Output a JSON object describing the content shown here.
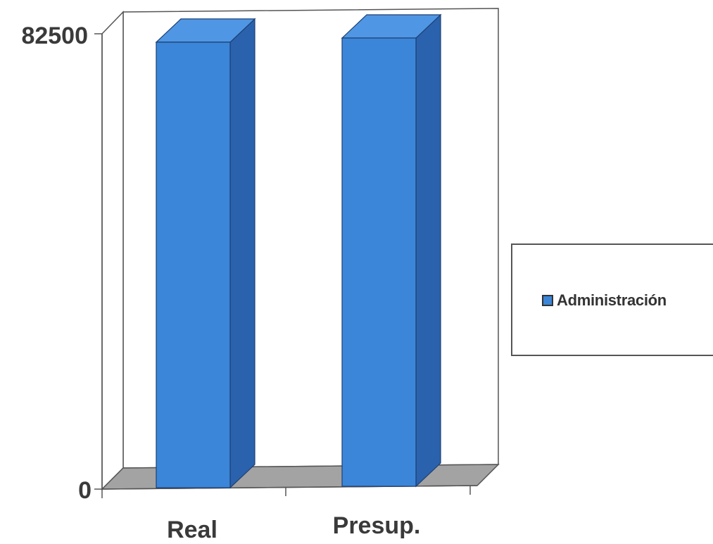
{
  "chart_data": {
    "type": "bar",
    "style": "3d-column",
    "categories": [
      "Real",
      "Presup."
    ],
    "series": [
      {
        "name": "Administración",
        "values": [
          82000,
          82500
        ]
      }
    ],
    "ylim": [
      0,
      82500
    ],
    "y_tick_labels": [
      "0",
      "82500"
    ],
    "legend_position": "right",
    "grid": false,
    "colors": {
      "bar_front": "#3b86d8",
      "bar_side": "#2a62ad",
      "bar_top": "#4f97e4",
      "floor": "#a3a3a3",
      "axis": "#444444"
    }
  }
}
